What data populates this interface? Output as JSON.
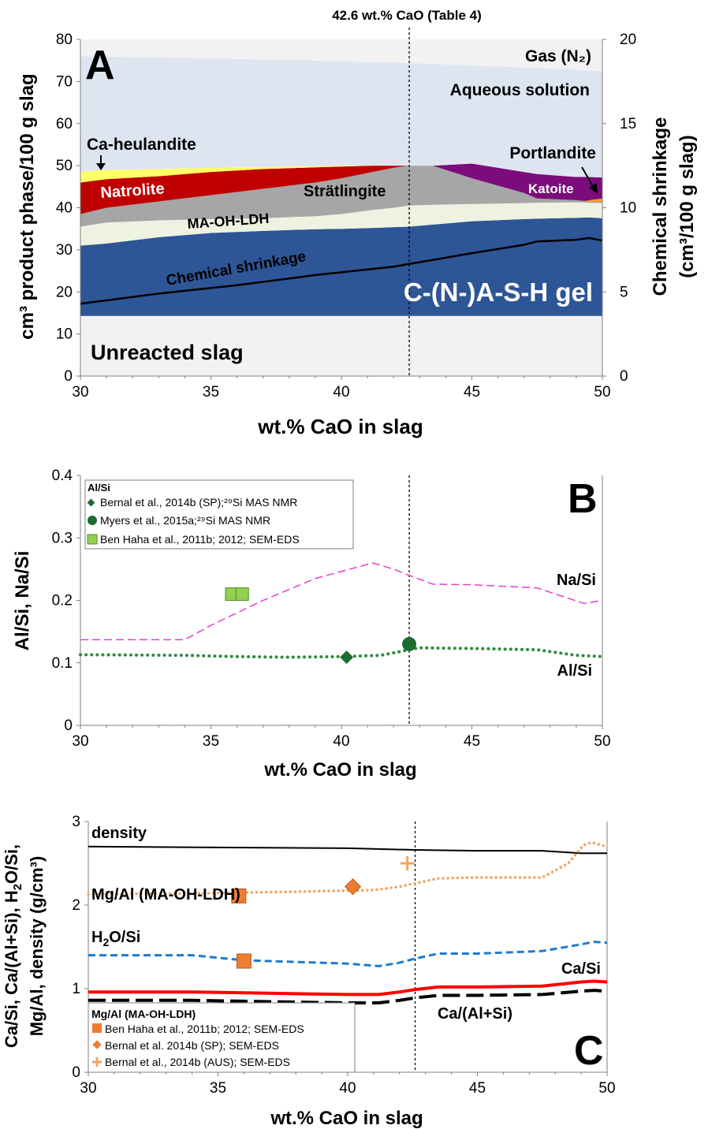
{
  "chart_data": [
    {
      "panel_label": "A",
      "type": "area",
      "xlabel": "wt.% CaO in slag",
      "ylabel": "cm³ product phase/100 g slag",
      "y2label": [
        "Chemical shrinkage",
        "(cm³/100 g slag)"
      ],
      "xlim": [
        30,
        50
      ],
      "ylim": [
        0,
        80
      ],
      "y2lim": [
        0,
        20
      ],
      "xticks": [
        "30",
        "35",
        "40",
        "45",
        "50"
      ],
      "yticks": [
        "0",
        "10",
        "20",
        "30",
        "40",
        "50",
        "60",
        "70",
        "80"
      ],
      "y2ticks": [
        "0",
        "5",
        "10",
        "15",
        "20"
      ],
      "reference_line": {
        "x": 42.6,
        "label": "42.6 wt.% CaO (Table 4)"
      },
      "phase_labels": {
        "gas": "Gas (N₂)",
        "aqueous": "Aqueous solution",
        "ca_heulandite": "Ca-heulandite",
        "portlandite": "Portlandite",
        "natrolite": "Natrolite",
        "stratlingite": "Strätlingite",
        "katoite": "Katoite",
        "ma_oh_ldh": "MA-OH-LDH",
        "shrinkage": "Chemical shrinkage",
        "gel": "C-(N-)A-S-H gel",
        "unreacted": "Unreacted slag"
      },
      "stack_x": [
        30,
        31,
        33,
        35,
        37,
        39,
        40,
        41.2,
        42,
        42.6,
        43.5,
        45,
        47,
        47.5,
        49,
        49.5,
        50
      ],
      "stack_tops": {
        "unreacted": [
          14.3,
          14.3,
          14.3,
          14.3,
          14.3,
          14.3,
          14.3,
          14.3,
          14.3,
          14.3,
          14.3,
          14.3,
          14.3,
          14.3,
          14.3,
          14.3,
          14.3
        ],
        "gel": [
          31,
          31.5,
          33,
          34,
          34.5,
          34.9,
          35,
          35.2,
          35.4,
          35.5,
          36,
          36.8,
          37.3,
          37.4,
          37.6,
          37.7,
          37.5
        ],
        "ma_oh_ldh": [
          35.5,
          36.5,
          37,
          37.3,
          37.5,
          38,
          38.5,
          39.5,
          40,
          40.5,
          40.7,
          40.9,
          41.1,
          41.2,
          41.3,
          41.2,
          41.1
        ],
        "stratlingite": [
          38.5,
          40,
          41.5,
          43,
          44.5,
          46,
          47,
          48.5,
          49.5,
          50,
          50,
          47,
          43.5,
          42.2,
          41.8,
          41.5,
          41.5
        ],
        "natrolite": [
          46,
          46.8,
          47.5,
          48.5,
          49.2,
          49.6,
          49.8,
          50,
          50,
          50,
          50,
          47,
          43.5,
          42.2,
          41.8,
          41.5,
          41.5
        ],
        "ca_heulandite": [
          48.5,
          49,
          49.2,
          49.5,
          49.7,
          49.9,
          50,
          50,
          50,
          50,
          50,
          47,
          43.5,
          42.2,
          41.8,
          41.5,
          41.5
        ],
        "katoite": [
          48.5,
          49,
          49.2,
          49.5,
          49.7,
          49.9,
          50,
          50,
          50,
          50,
          50,
          50.5,
          48.5,
          48,
          47.3,
          47.3,
          47.2
        ],
        "aqueous": [
          76,
          75.9,
          75.7,
          75.5,
          75.2,
          75,
          74.8,
          74.6,
          74.5,
          74.4,
          74.2,
          73.8,
          73.3,
          73.2,
          72.8,
          72.6,
          72.5
        ],
        "gas": [
          80,
          80,
          80,
          80,
          80,
          80,
          80,
          80,
          80,
          80,
          80,
          80,
          80,
          80,
          80,
          80,
          80
        ]
      },
      "portlandite_band": {
        "x": [
          49.3,
          49.6,
          50
        ],
        "bottom": [
          41.5,
          41.4,
          41.4
        ],
        "top": [
          41.6,
          41.9,
          42.2
        ]
      },
      "shrinkage_x": [
        30,
        33,
        36,
        39,
        42,
        43.5,
        45,
        47,
        47.5,
        49,
        49.5,
        50
      ],
      "shrinkage_y": [
        4.3,
        4.9,
        5.4,
        6,
        6.5,
        6.9,
        7.3,
        7.8,
        8.0,
        8.1,
        8.2,
        8.05
      ]
    },
    {
      "panel_label": "B",
      "type": "line",
      "xlabel": "wt.% CaO in slag",
      "ylabel": "Al/Si, Na/Si",
      "xlim": [
        30,
        50
      ],
      "ylim": [
        0,
        0.4
      ],
      "xticks": [
        "30",
        "35",
        "40",
        "45",
        "50"
      ],
      "yticks": [
        "0",
        "0.1",
        "0.2",
        "0.3",
        "0.4"
      ],
      "reference_line": {
        "x": 42.6
      },
      "series": [
        {
          "name": "Na/Si",
          "x": [
            30,
            34,
            35,
            37,
            39,
            41.2,
            42,
            42.6,
            43.5,
            45,
            47.5,
            49.3,
            50
          ],
          "y": [
            0.137,
            0.137,
            0.16,
            0.2,
            0.235,
            0.26,
            0.25,
            0.24,
            0.226,
            0.225,
            0.22,
            0.195,
            0.2
          ]
        },
        {
          "name": "Al/Si",
          "x": [
            30,
            34,
            36,
            38,
            40,
            41.5,
            42,
            42.6,
            43,
            45,
            47.5,
            49,
            50
          ],
          "y": [
            0.113,
            0.112,
            0.11,
            0.109,
            0.11,
            0.112,
            0.116,
            0.121,
            0.124,
            0.123,
            0.121,
            0.112,
            0.11
          ]
        }
      ],
      "legend_title": "Al/Si",
      "points": [
        {
          "name": "Bernal et al., 2014b (SP);²⁹Si MAS NMR",
          "marker": "diamond",
          "x": [
            40.2
          ],
          "y": [
            0.109
          ]
        },
        {
          "name": "Myers et al., 2015a;²⁹Si MAS NMR",
          "marker": "circle",
          "x": [
            42.6
          ],
          "y": [
            0.13
          ]
        },
        {
          "name": "Ben Haha et al., 2011b; 2012; SEM-EDS",
          "marker": "square",
          "x": [
            35.8,
            36.2
          ],
          "y": [
            0.21,
            0.21
          ]
        }
      ]
    },
    {
      "panel_label": "C",
      "type": "line",
      "xlabel": "wt.% CaO in slag",
      "ylabel": [
        "Ca/Si, Ca/(Al+Si), H₂O/Si,",
        "Mg/Al, density (g/cm³)"
      ],
      "xlim": [
        30,
        50
      ],
      "ylim": [
        0,
        3
      ],
      "xticks": [
        "30",
        "35",
        "40",
        "45",
        "50"
      ],
      "yticks": [
        "0",
        "1",
        "2",
        "3"
      ],
      "reference_line": {
        "x": 42.6
      },
      "series": [
        {
          "name": "density",
          "x": [
            30,
            35,
            40,
            42.6,
            45,
            47.5,
            49,
            50
          ],
          "y": [
            2.7,
            2.69,
            2.68,
            2.66,
            2.65,
            2.65,
            2.62,
            2.62
          ]
        },
        {
          "name": "Mg/Al (MA-OH-LDH)",
          "x": [
            30,
            34,
            38,
            41,
            42,
            42.6,
            43.5,
            45,
            47.5,
            48.5,
            49.1,
            49.4,
            50
          ],
          "y": [
            2.13,
            2.14,
            2.16,
            2.18,
            2.22,
            2.26,
            2.32,
            2.33,
            2.33,
            2.5,
            2.72,
            2.75,
            2.7
          ]
        },
        {
          "name": "H₂O/Si",
          "x": [
            30,
            34,
            36,
            38,
            40,
            41.2,
            42,
            42.6,
            43.5,
            45,
            47.5,
            49,
            49.5,
            50
          ],
          "y": [
            1.4,
            1.4,
            1.34,
            1.32,
            1.3,
            1.27,
            1.31,
            1.36,
            1.42,
            1.42,
            1.45,
            1.53,
            1.56,
            1.55
          ]
        },
        {
          "name": "Ca/Si",
          "x": [
            30,
            34,
            36,
            38,
            40,
            41.2,
            42,
            42.6,
            43.5,
            45,
            47.5,
            49,
            49.5,
            50
          ],
          "y": [
            0.96,
            0.96,
            0.95,
            0.94,
            0.93,
            0.93,
            0.96,
            0.99,
            1.02,
            1.02,
            1.03,
            1.08,
            1.09,
            1.08
          ]
        },
        {
          "name": "Ca/(Al+Si)",
          "x": [
            30,
            34,
            36,
            38,
            40,
            41.2,
            42,
            42.6,
            43.5,
            45,
            47.5,
            49,
            49.5,
            50
          ],
          "y": [
            0.86,
            0.86,
            0.85,
            0.84,
            0.83,
            0.83,
            0.86,
            0.89,
            0.92,
            0.92,
            0.93,
            0.97,
            0.98,
            0.97
          ]
        }
      ],
      "legend_title": "Mg/Al (MA-OH-LDH)",
      "points": [
        {
          "name": "Ben Haha et al., 2011b; 2012; SEM-EDS",
          "marker": "square",
          "x": [
            35.8,
            36.0
          ],
          "y": [
            2.11,
            1.33
          ]
        },
        {
          "name": "Bernal et al. 2014b (SP); SEM-EDS",
          "marker": "diamond",
          "x": [
            40.2
          ],
          "y": [
            2.22
          ]
        },
        {
          "name": "Bernal et al., 2014b (AUS); SEM-EDS",
          "marker": "plus",
          "x": [
            42.3
          ],
          "y": [
            2.5
          ]
        }
      ]
    }
  ],
  "colors": {
    "gas": "#f2f2f2",
    "aqueous": "#dde5f1",
    "ca_heulandite": "#ffff66",
    "natrolite": "#c00000",
    "stratlingite": "#a6a6a6",
    "katoite": "#7b0c7b",
    "portlandite": "#f0a030",
    "ma_oh_ldh": "#eef2e0",
    "gel": "#2e5596",
    "unreacted": "#f2f2f2",
    "na_si": "#e040d0",
    "al_si": "#2e8b3e",
    "al_si_marker": "#1e6b30",
    "square": "#92d050",
    "orange": "#f4a460",
    "orange_marker": "#ed7d31",
    "blue": "#1f7ad0",
    "red": "#ff0000"
  }
}
